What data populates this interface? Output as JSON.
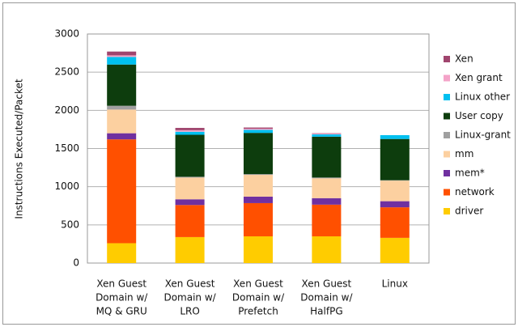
{
  "chart_data": {
    "type": "stacked-bar",
    "y_label": "Instructions Executed/Packet",
    "categories": [
      [
        "Xen Guest",
        "Domain w/",
        "MQ & GRU"
      ],
      [
        "Xen Guest",
        "Domain w/",
        "LRO"
      ],
      [
        "Xen Guest",
        "Domain w/",
        "Prefetch"
      ],
      [
        "Xen Guest",
        "Domain w/",
        "HalfPG"
      ],
      [
        "Linux"
      ]
    ],
    "series": [
      {
        "name": "driver",
        "color": "#ffcc00",
        "values": [
          260,
          340,
          350,
          350,
          330
        ]
      },
      {
        "name": "network",
        "color": "#ff5000",
        "values": [
          1360,
          420,
          435,
          415,
          400
        ]
      },
      {
        "name": "mem*",
        "color": "#7030a0",
        "values": [
          80,
          75,
          85,
          85,
          80
        ]
      },
      {
        "name": "mm",
        "color": "#fcd0a0",
        "values": [
          310,
          285,
          285,
          260,
          270
        ]
      },
      {
        "name": "Linux-grant",
        "color": "#a0a0a0",
        "values": [
          50,
          10,
          10,
          10,
          5
        ]
      },
      {
        "name": "User copy",
        "color": "#0d3d0d",
        "values": [
          540,
          550,
          540,
          535,
          540
        ]
      },
      {
        "name": "Linux other",
        "color": "#00c0f0",
        "values": [
          100,
          40,
          40,
          30,
          50
        ]
      },
      {
        "name": "Xen grant",
        "color": "#f4a3c8",
        "values": [
          20,
          20,
          15,
          10,
          0
        ]
      },
      {
        "name": "Xen",
        "color": "#a0456e",
        "values": [
          50,
          30,
          15,
          5,
          0
        ]
      }
    ],
    "ylim": [
      0,
      3000
    ],
    "yticks": [
      0,
      500,
      1000,
      1500,
      2000,
      2500,
      3000
    ],
    "grid": true,
    "legend": "right"
  }
}
